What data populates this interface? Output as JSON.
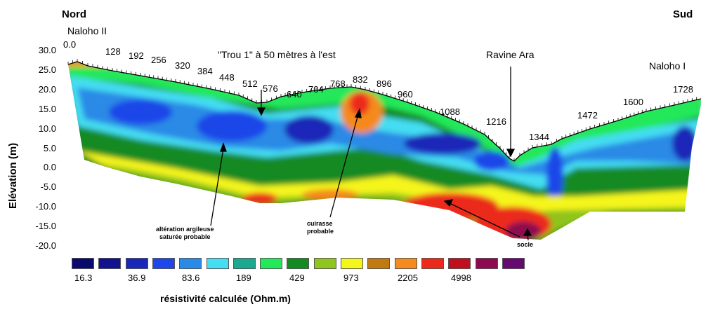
{
  "chart_data": {
    "type": "heatmap",
    "title": "",
    "direction_left": "Nord",
    "direction_right": "Sud",
    "ylabel": "Elévation (m)",
    "yticks": [
      "30.0",
      "25.0",
      "20.0",
      "15.0",
      "10.0",
      "5.0",
      "0.0",
      "-5.0",
      "-10.0",
      "-15.0",
      "-20.0"
    ],
    "ylim": [
      -20,
      30
    ],
    "distance_labels": [
      "0.0",
      "128",
      "192",
      "256",
      "320",
      "384",
      "448",
      "512",
      "576",
      "640",
      "704",
      "768",
      "832",
      "896",
      "960",
      "1088",
      "1216",
      "1344",
      "1472",
      "1600",
      "1728"
    ],
    "sites": [
      {
        "label": "Naloho II"
      },
      {
        "label": "\"Trou 1\" à 50 mètres à l'est"
      },
      {
        "label": "Ravine Ara"
      },
      {
        "label": "Naloho I"
      }
    ],
    "annotations": [
      {
        "line1": "altération argileuse",
        "line2": "saturée probable"
      },
      {
        "line1": "cuirasse",
        "line2": "probable"
      },
      {
        "line1": "socle",
        "line2": ""
      }
    ],
    "legend": {
      "title": "résistivité calculée (Ohm.m)",
      "colors": [
        "#0a0a6e",
        "#12128f",
        "#1a28b8",
        "#1e46e8",
        "#2a8ae6",
        "#44ddf2",
        "#1aa890",
        "#22e85a",
        "#148a22",
        "#90c41e",
        "#f5f51e",
        "#c07a10",
        "#f58a1e",
        "#ec2a1a",
        "#c0101e",
        "#8e0a50",
        "#660a72"
      ],
      "labels": [
        "16.3",
        "36.9",
        "83.6",
        "189",
        "429",
        "973",
        "2205",
        "4998"
      ]
    },
    "grid": false
  }
}
